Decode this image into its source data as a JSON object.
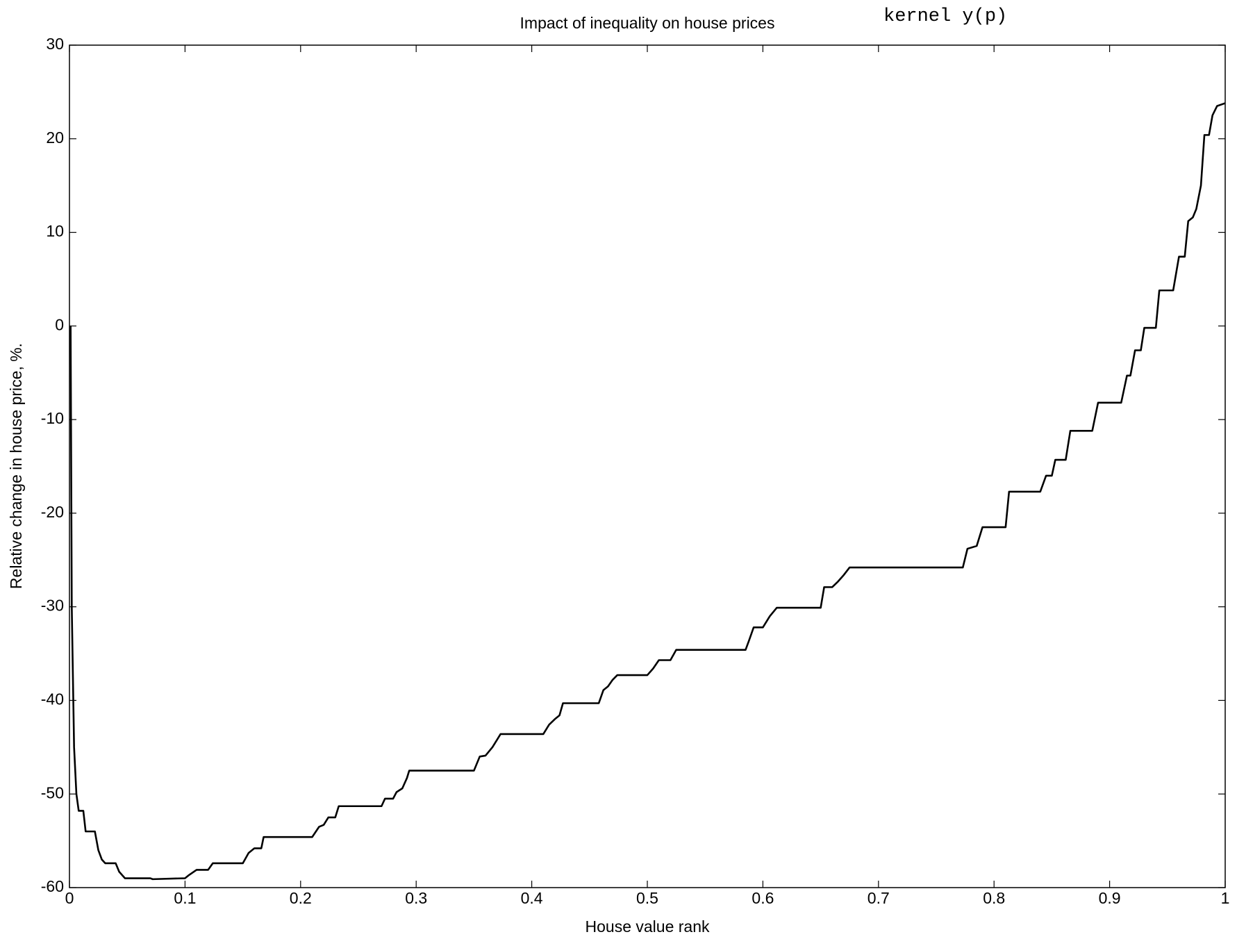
{
  "chart_data": {
    "type": "line",
    "title": "Impact of inequality on house prices",
    "annotation": "kernel y(p)",
    "xlabel": "House value rank",
    "ylabel": "Relative change in house price, %.",
    "xlim": [
      0,
      1
    ],
    "ylim": [
      -60,
      30
    ],
    "xticks": [
      0,
      0.1,
      0.2,
      0.3,
      0.4,
      0.5,
      0.6,
      0.7,
      0.8,
      0.9,
      1
    ],
    "yticks": [
      -60,
      -50,
      -40,
      -30,
      -20,
      -10,
      0,
      10,
      20,
      30
    ],
    "x": [
      0.001,
      0.002,
      0.004,
      0.006,
      0.008,
      0.012,
      0.014,
      0.022,
      0.025,
      0.028,
      0.031,
      0.04,
      0.043,
      0.048,
      0.07,
      0.072,
      0.1,
      0.103,
      0.11,
      0.12,
      0.124,
      0.15,
      0.155,
      0.16,
      0.166,
      0.168,
      0.21,
      0.216,
      0.22,
      0.224,
      0.23,
      0.233,
      0.27,
      0.273,
      0.28,
      0.283,
      0.288,
      0.292,
      0.294,
      0.35,
      0.355,
      0.36,
      0.366,
      0.37,
      0.373,
      0.41,
      0.415,
      0.42,
      0.424,
      0.427,
      0.458,
      0.462,
      0.466,
      0.47,
      0.474,
      0.5,
      0.505,
      0.51,
      0.52,
      0.525,
      0.585,
      0.588,
      0.592,
      0.6,
      0.606,
      0.612,
      0.65,
      0.653,
      0.66,
      0.665,
      0.67,
      0.675,
      0.773,
      0.777,
      0.785,
      0.79,
      0.81,
      0.813,
      0.84,
      0.845,
      0.85,
      0.853,
      0.862,
      0.866,
      0.885,
      0.89,
      0.91,
      0.915,
      0.918,
      0.922,
      0.927,
      0.93,
      0.94,
      0.943,
      0.955,
      0.96,
      0.965,
      0.968,
      0.972,
      0.975,
      0.979,
      0.982,
      0.986,
      0.989,
      0.993,
      1.0
    ],
    "series": [
      {
        "color": "#000000",
        "values": [
          0,
          -30,
          -45,
          -50,
          -51.8,
          -51.8,
          -54,
          -54,
          -56,
          -57,
          -57.4,
          -57.4,
          -58.3,
          -59,
          -59,
          -59.1,
          -59,
          -58.7,
          -58.1,
          -58.1,
          -57.4,
          -57.4,
          -56.3,
          -55.8,
          -55.8,
          -54.6,
          -54.6,
          -53.5,
          -53.3,
          -52.5,
          -52.5,
          -51.3,
          -51.3,
          -50.5,
          -50.5,
          -49.8,
          -49.4,
          -48.3,
          -47.5,
          -47.5,
          -46,
          -45.9,
          -45,
          -44.2,
          -43.6,
          -43.6,
          -42.6,
          -42,
          -41.6,
          -40.3,
          -40.3,
          -38.9,
          -38.5,
          -37.8,
          -37.3,
          -37.3,
          -36.6,
          -35.7,
          -35.7,
          -34.6,
          -34.6,
          -33.6,
          -32.2,
          -32.2,
          -31,
          -30.1,
          -30.1,
          -27.9,
          -27.9,
          -27.3,
          -26.6,
          -25.8,
          -25.8,
          -23.8,
          -23.5,
          -21.5,
          -21.5,
          -17.7,
          -17.7,
          -16,
          -16,
          -14.3,
          -14.3,
          -11.2,
          -11.2,
          -8.2,
          -8.2,
          -5.3,
          -5.3,
          -2.6,
          -2.6,
          -0.2,
          -0.2,
          3.8,
          3.8,
          7.4,
          7.4,
          11.2,
          11.6,
          12.5,
          15,
          20.4,
          20.4,
          22.5,
          23.5,
          23.8
        ]
      }
    ]
  }
}
